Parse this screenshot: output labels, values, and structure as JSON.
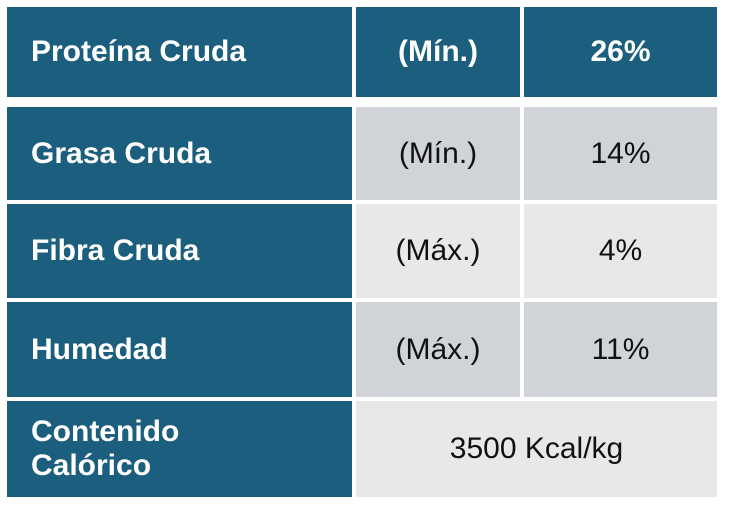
{
  "table": {
    "header": [
      "Proteína Cruda",
      "(Mín.)",
      "26%"
    ],
    "rows": [
      [
        "Grasa Cruda",
        "(Mín.)",
        "14%"
      ],
      [
        "Fibra Cruda",
        "(Máx.)",
        "4%"
      ],
      [
        "Humedad",
        "(Máx.)",
        "11%"
      ],
      [
        "Contenido Calórico",
        "3500 Kcal/kg"
      ]
    ]
  }
}
